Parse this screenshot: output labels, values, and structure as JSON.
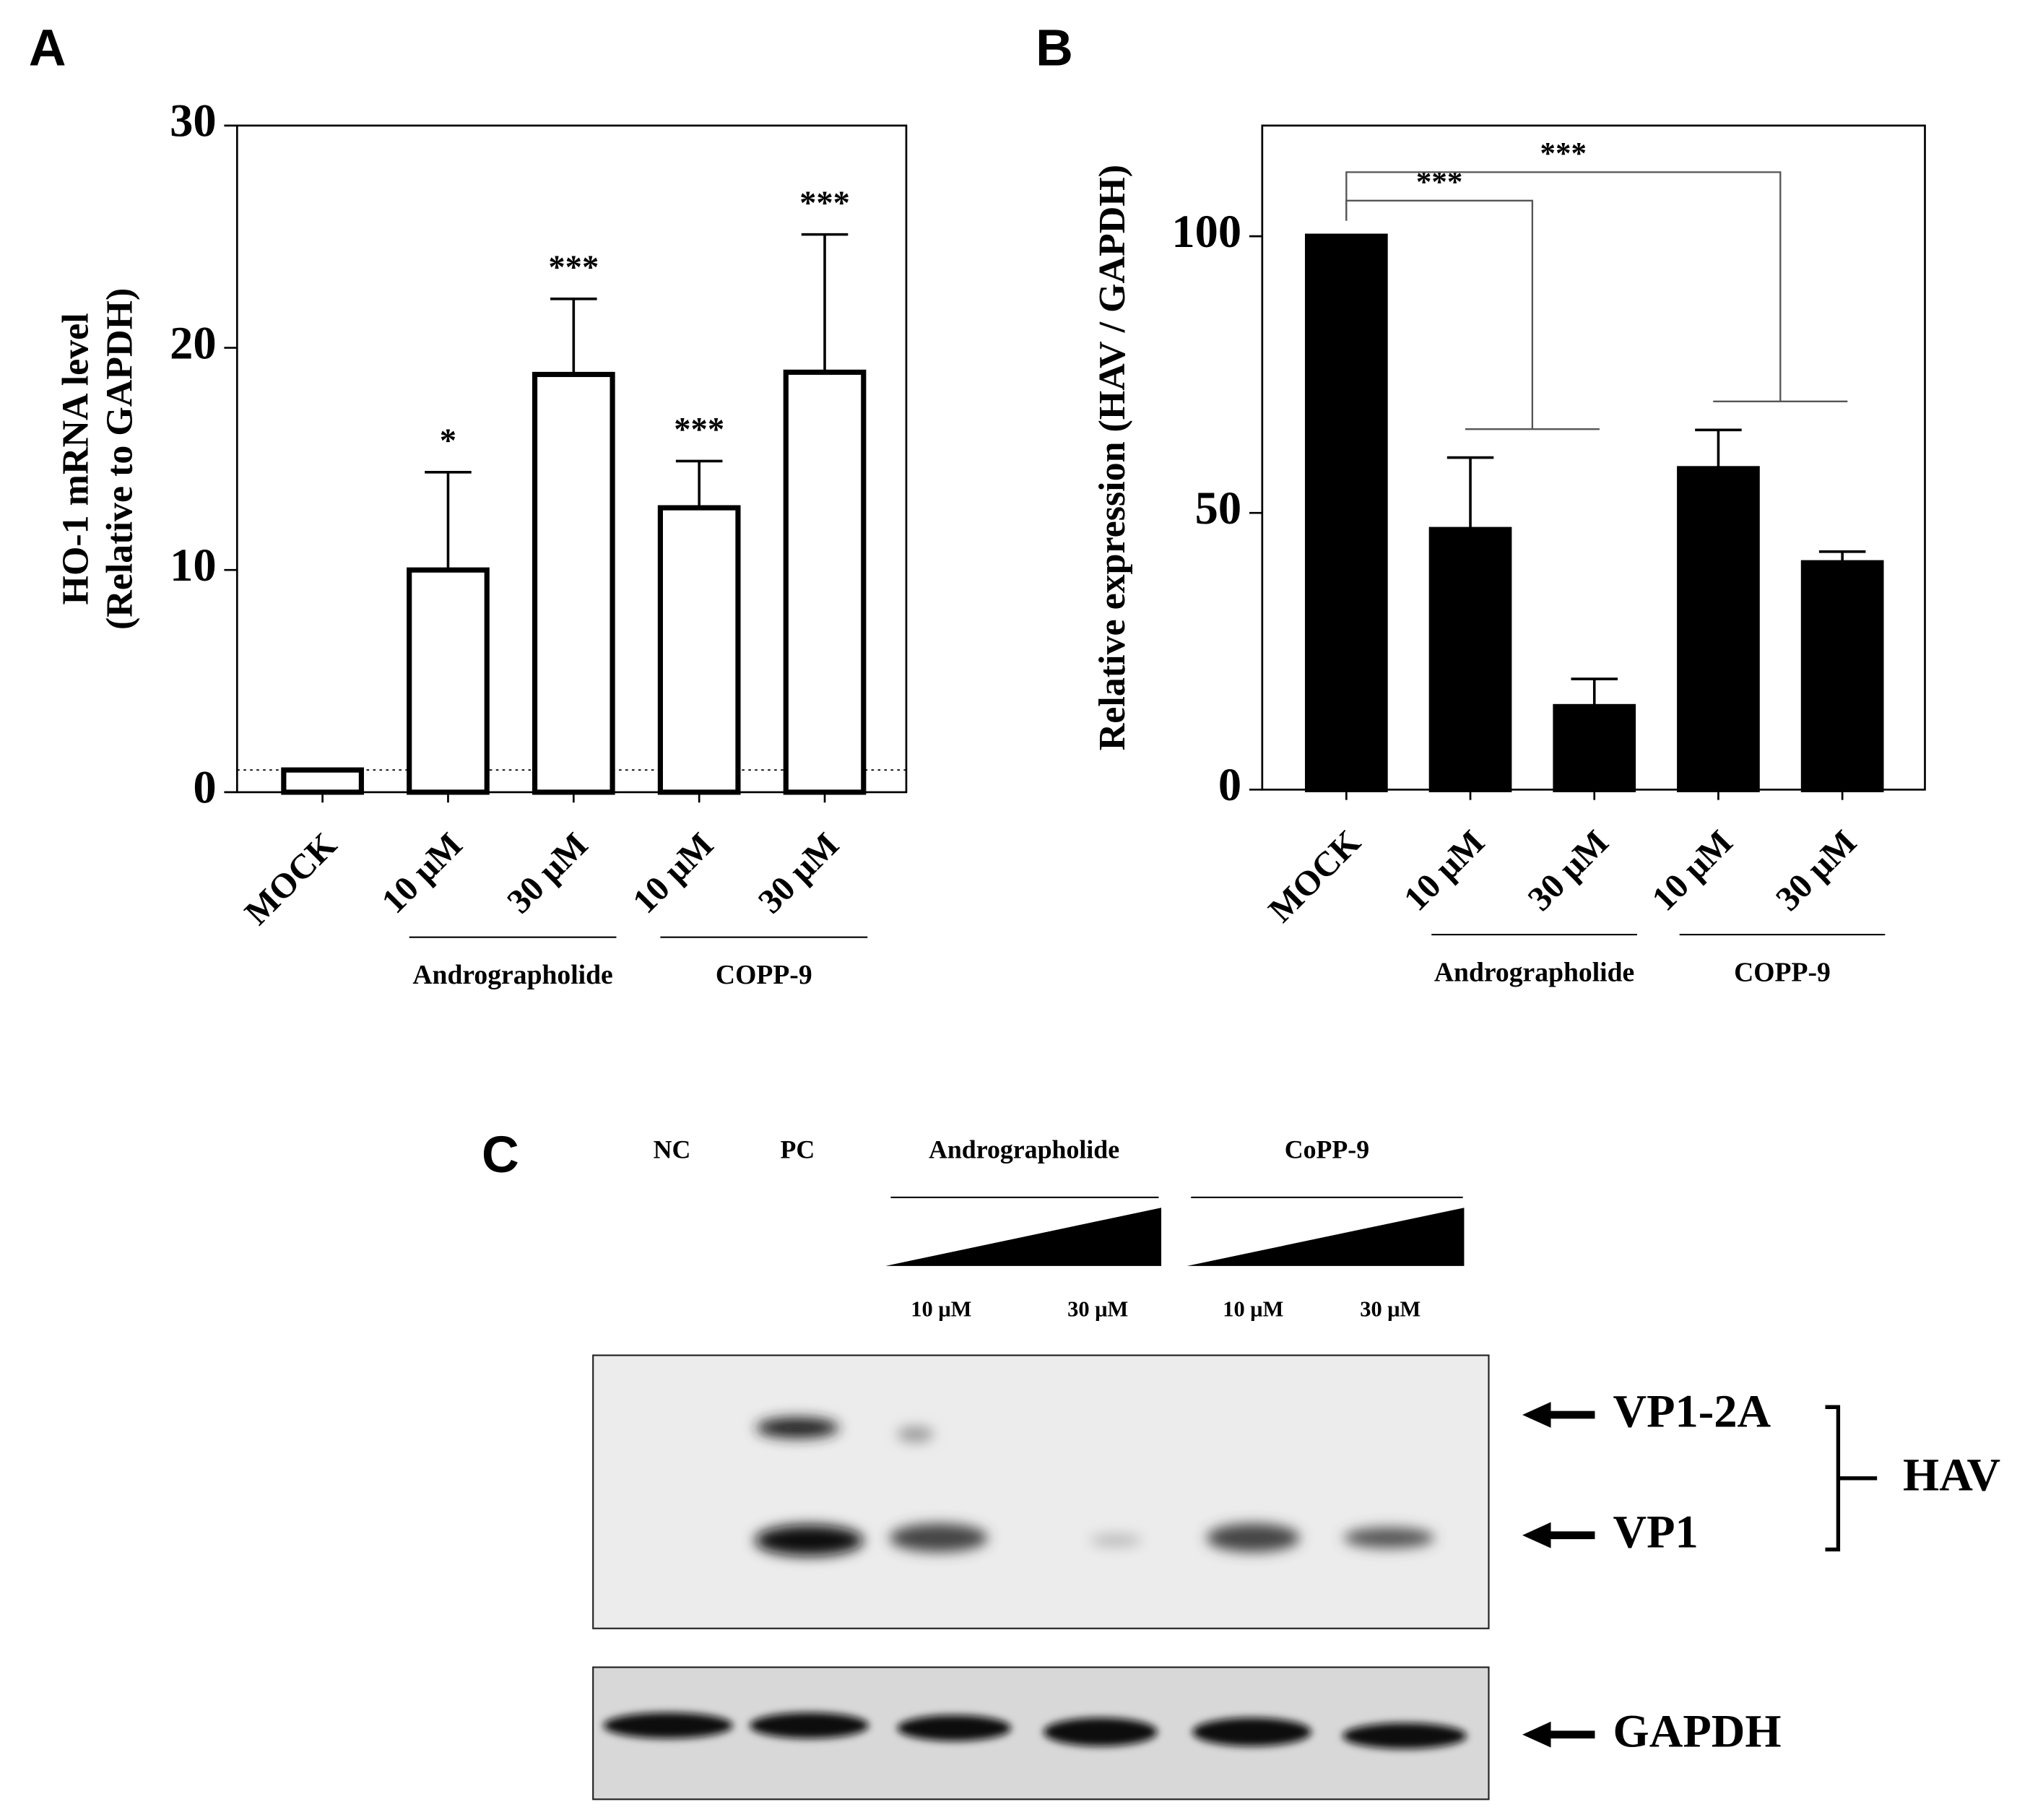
{
  "chart_data": [
    {
      "type": "bar",
      "panel": "A",
      "ylabel": [
        "HO-1 mRNA level",
        "(Relative to GAPDH)"
      ],
      "categories": [
        "MOCK",
        "10 μM",
        "30 μM",
        "10 μM",
        "30 μM"
      ],
      "values": [
        1,
        10,
        18.8,
        12.8,
        18.9
      ],
      "errors": [
        null,
        4.4,
        3.4,
        2.1,
        6.2
      ],
      "significance": [
        null,
        "*",
        "***",
        "***",
        "***"
      ],
      "groups": [
        {
          "label": "Andrographolide",
          "span": [
            1,
            2
          ]
        },
        {
          "label": "COPP-9",
          "span": [
            3,
            4
          ]
        }
      ],
      "fill": "#ffffff",
      "edge": "#000000",
      "reference_line": 1,
      "ylim": [
        0,
        30
      ],
      "yticks": [
        0,
        10,
        20,
        30
      ]
    },
    {
      "type": "bar",
      "panel": "B",
      "ylabel": [
        "Relative expression (HAV / GAPDH)"
      ],
      "categories": [
        "MOCK",
        "10 μM",
        "30 μM",
        "10 μM",
        "30 μM"
      ],
      "values": [
        100,
        47,
        15,
        58,
        41
      ],
      "errors": [
        null,
        13,
        5,
        7,
        2
      ],
      "groups": [
        {
          "label": "Andrographolide",
          "span": [
            1,
            2
          ]
        },
        {
          "label": "COPP-9",
          "span": [
            3,
            4
          ]
        }
      ],
      "brackets": [
        {
          "label": "***",
          "group": 0
        },
        {
          "label": "***",
          "group": 1
        }
      ],
      "fill": "#000000",
      "edge": "#000000",
      "ylim": [
        0,
        120
      ],
      "yticks": [
        0,
        50,
        100
      ]
    }
  ],
  "blot": {
    "panel": "C",
    "lanes": [
      "NC",
      "PC"
    ],
    "treatments": [
      "Andrographolide",
      "CoPP-9"
    ],
    "doses": [
      "10 μM",
      "30 μM",
      "10 μM",
      "30 μM"
    ],
    "bands": [
      "VP1-2A",
      "VP1",
      "GAPDH"
    ],
    "virus": "HAV"
  }
}
